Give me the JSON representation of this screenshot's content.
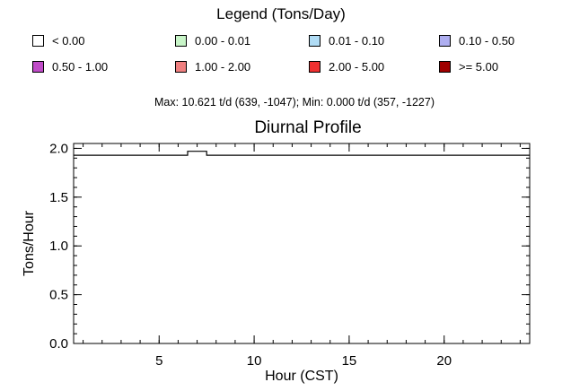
{
  "legend": {
    "title": "Legend (Tons/Day)",
    "items": [
      {
        "label": "< 0.00",
        "color": "#ffffff"
      },
      {
        "label": "0.00 - 0.01",
        "color": "#c8f5c8"
      },
      {
        "label": "0.01 - 0.10",
        "color": "#b0dcf5"
      },
      {
        "label": "0.10 - 0.50",
        "color": "#aeaef0"
      },
      {
        "label": "0.50 - 1.00",
        "color": "#c04cc8"
      },
      {
        "label": "1.00 - 2.00",
        "color": "#f08080"
      },
      {
        "label": "2.00 - 5.00",
        "color": "#f03030"
      },
      {
        "label": ">= 5.00",
        "color": "#a00000"
      }
    ]
  },
  "stats": "Max: 10.621 t/d (639, -1047); Min: 0.000 t/d (357, -1227)",
  "chart_data": {
    "type": "line",
    "title": "Diurnal Profile",
    "xlabel": "Hour (CST)",
    "ylabel": "Tons/Hour",
    "xlim": [
      0.5,
      24.5
    ],
    "ylim": [
      0.0,
      2.05
    ],
    "xticks": [
      5,
      10,
      15,
      20
    ],
    "xtick_labels": [
      "5",
      "10",
      "15",
      "20"
    ],
    "yticks": [
      0.0,
      0.5,
      1.0,
      1.5,
      2.0
    ],
    "ytick_labels": [
      "0.0",
      "0.5",
      "1.0",
      "1.5",
      "2.0"
    ],
    "grid": false,
    "series": [
      {
        "x": [
          1,
          2,
          3,
          4,
          5,
          6,
          7,
          8,
          9,
          10,
          11,
          12,
          13,
          14,
          15,
          16,
          17,
          18,
          19,
          20,
          21,
          22,
          23,
          24
        ],
        "values": [
          1.93,
          1.93,
          1.93,
          1.93,
          1.93,
          1.93,
          1.97,
          1.93,
          1.93,
          1.93,
          1.93,
          1.93,
          1.93,
          1.93,
          1.93,
          1.93,
          1.93,
          1.93,
          1.93,
          1.93,
          1.93,
          1.93,
          1.93,
          1.93
        ],
        "color": "#000000"
      }
    ]
  }
}
